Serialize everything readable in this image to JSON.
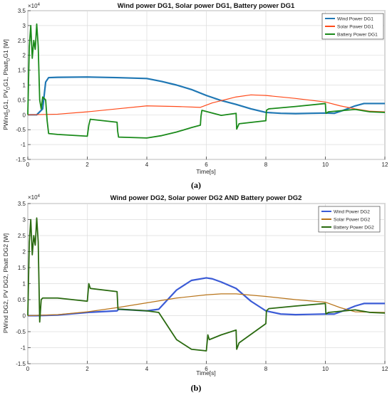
{
  "colors": {
    "wind1": "#1f77b4",
    "solar1": "#ff4a1a",
    "batt1": "#1a8a1a",
    "wind2": "#3b5bd6",
    "solar2": "#b8741a",
    "batt2": "#2a6a10"
  },
  "chart_data": [
    {
      "type": "line",
      "title": "Wind power DG1,  Solar power DG1, Battery power DG1",
      "xlabel": "Time[s]",
      "ylabel": "PWind",
      "ylabel_parts": [
        "PWind",
        "D",
        "G1, PV",
        "D",
        "G1, Pbatt",
        "D",
        "G1 [W]"
      ],
      "exponent_label": "×10",
      "exponent_power": "4",
      "xlim": [
        0,
        12
      ],
      "ylim": [
        -1.5,
        3.5
      ],
      "xticks": [
        "0",
        "2",
        "4",
        "6",
        "8",
        "10",
        "12"
      ],
      "yticks": [
        "-1.5",
        "-1",
        "-0.5",
        "0",
        "0.5",
        "1",
        "1.5",
        "2",
        "2.5",
        "3",
        "3.5"
      ],
      "grid": true,
      "legend_position": "top-right",
      "caption": "(a)",
      "series": [
        {
          "name": "Wind Power DG1",
          "color_key": "wind1",
          "width": 2.2,
          "x": [
            0,
            0.3,
            0.5,
            0.6,
            0.7,
            1,
            2,
            3,
            4,
            4.5,
            5,
            5.5,
            6,
            6.5,
            7,
            7.5,
            8,
            8.5,
            9,
            9.5,
            10,
            10.3,
            10.6,
            11,
            11.3,
            12
          ],
          "y": [
            0,
            0,
            0.2,
            1.1,
            1.25,
            1.26,
            1.27,
            1.25,
            1.22,
            1.12,
            1.0,
            0.85,
            0.65,
            0.48,
            0.35,
            0.2,
            0.08,
            0.05,
            0.04,
            0.05,
            0.06,
            0.05,
            0.15,
            0.3,
            0.38,
            0.38
          ]
        },
        {
          "name": "Solar Power DG1",
          "color_key": "solar1",
          "width": 1.2,
          "x": [
            0,
            1,
            2,
            3,
            4,
            5,
            5.8,
            6.2,
            7,
            7.5,
            8,
            9,
            10,
            10.5,
            11,
            11.5,
            12
          ],
          "y": [
            0,
            0.02,
            0.1,
            0.2,
            0.3,
            0.28,
            0.25,
            0.4,
            0.6,
            0.67,
            0.65,
            0.55,
            0.43,
            0.3,
            0.2,
            0.12,
            0.1
          ]
        },
        {
          "name": "Battery Power DG1",
          "color_key": "batt1",
          "width": 1.8,
          "x": [
            0,
            0.05,
            0.1,
            0.15,
            0.2,
            0.25,
            0.3,
            0.35,
            0.4,
            0.45,
            0.5,
            0.55,
            0.6,
            0.65,
            0.7,
            1,
            2,
            2.05,
            2.1,
            3,
            3.02,
            3.05,
            4,
            4.5,
            5,
            5.5,
            5.8,
            5.82,
            5.85,
            6.5,
            7,
            7.02,
            7.1,
            8,
            8.02,
            8.1,
            9,
            10,
            10.02,
            10.1,
            11,
            11.5,
            12
          ],
          "y": [
            0,
            2.3,
            3.0,
            1.9,
            2.5,
            2.2,
            3.05,
            2.3,
            0.5,
            0.2,
            0.6,
            0.55,
            0.5,
            -0.2,
            -0.63,
            -0.66,
            -0.72,
            -0.35,
            -0.15,
            -0.25,
            -0.55,
            -0.75,
            -0.78,
            -0.7,
            -0.58,
            -0.43,
            -0.35,
            -0.05,
            0.15,
            -0.02,
            0.05,
            -0.48,
            -0.3,
            -0.2,
            0.15,
            0.2,
            0.28,
            0.38,
            0.05,
            0.1,
            0.18,
            0.1,
            0.08
          ]
        }
      ]
    },
    {
      "type": "line",
      "title": "Wind power DG2,  Solar power DG2 AND Battery power DG2",
      "xlabel": "Time[s]",
      "ylabel": "PWind DG2, PV DG2, Pbatt DG2 [W]",
      "ylabel_parts": [
        "PWind DG2, PV DG2, Pbatt DG2 [W]"
      ],
      "exponent_label": "×10",
      "exponent_power": "4",
      "xlim": [
        0,
        12
      ],
      "ylim": [
        -1.5,
        3.5
      ],
      "xticks": [
        "0",
        "2",
        "4",
        "6",
        "8",
        "10",
        "12"
      ],
      "yticks": [
        "-1.5",
        "-1",
        "-0.5",
        "0",
        "0.5",
        "1",
        "1.5",
        "2",
        "2.5",
        "3",
        "3.5"
      ],
      "grid": true,
      "legend_position": "top-right",
      "caption": "(b)",
      "series": [
        {
          "name": "Wind Power DG2",
          "color_key": "wind2",
          "width": 2.2,
          "x": [
            0,
            0.3,
            1,
            2,
            3,
            3.05,
            4,
            4.4,
            5,
            5.5,
            6,
            6.2,
            6.5,
            7,
            7.5,
            8,
            8.5,
            9,
            9.5,
            10,
            10.3,
            10.6,
            11,
            11.3,
            12
          ],
          "y": [
            0,
            0,
            0.02,
            0.1,
            0.15,
            0.2,
            0.15,
            0.2,
            0.8,
            1.1,
            1.18,
            1.15,
            1.05,
            0.85,
            0.45,
            0.15,
            0.05,
            0.03,
            0.04,
            0.05,
            0.05,
            0.15,
            0.3,
            0.38,
            0.38
          ]
        },
        {
          "name": "Solar Power DG2",
          "color_key": "solar2",
          "width": 1.2,
          "x": [
            0,
            1,
            2,
            3,
            4,
            5,
            6,
            6.5,
            7,
            8,
            9,
            10,
            10.5,
            11,
            12
          ],
          "y": [
            0,
            0.03,
            0.12,
            0.25,
            0.4,
            0.55,
            0.65,
            0.68,
            0.68,
            0.6,
            0.5,
            0.42,
            0.25,
            0.12,
            0.1
          ]
        },
        {
          "name": "Battery Power DG2",
          "color_key": "batt2",
          "width": 1.8,
          "x": [
            0,
            0.05,
            0.1,
            0.15,
            0.2,
            0.25,
            0.3,
            0.35,
            0.4,
            0.45,
            0.5,
            1,
            2,
            2.05,
            2.1,
            3,
            3.03,
            3.1,
            4,
            4.4,
            5,
            5.5,
            6,
            6.05,
            6.1,
            6.5,
            7,
            7.02,
            7.1,
            8,
            8.02,
            8.1,
            9,
            10,
            10.02,
            10.1,
            11,
            11.5,
            12
          ],
          "y": [
            0,
            2.3,
            3.0,
            1.9,
            2.5,
            2.2,
            3.05,
            2.3,
            -0.2,
            0.5,
            0.55,
            0.55,
            0.45,
            1.0,
            0.85,
            0.75,
            0.2,
            0.2,
            0.15,
            0.1,
            -0.75,
            -1.05,
            -1.1,
            -0.6,
            -0.75,
            -0.6,
            -0.45,
            -1.05,
            -0.85,
            -0.25,
            0.15,
            0.22,
            0.3,
            0.38,
            0.05,
            0.1,
            0.18,
            0.1,
            0.08
          ]
        }
      ]
    }
  ]
}
